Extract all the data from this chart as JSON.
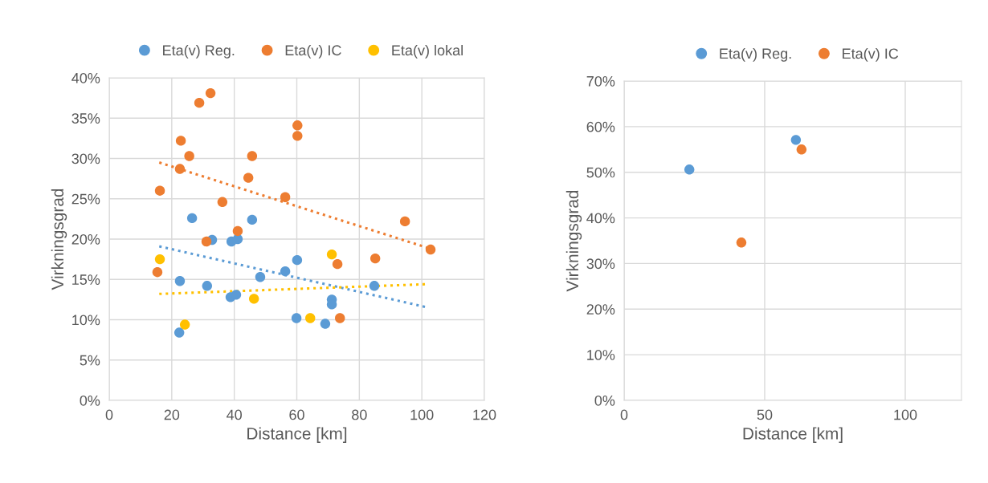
{
  "chart_data": [
    {
      "type": "scatter",
      "xlabel": "Distance [km]",
      "ylabel": "Virkningsgrad",
      "xlim": [
        0,
        120
      ],
      "xticks": [
        0,
        20,
        40,
        60,
        80,
        100,
        120
      ],
      "ylim": [
        0,
        40
      ],
      "yticks": [
        {
          "value": 0,
          "label": "0%"
        },
        {
          "value": 5,
          "label": "5%"
        },
        {
          "value": 10,
          "label": "10%"
        },
        {
          "value": 15,
          "label": "15%"
        },
        {
          "value": 20,
          "label": "20%"
        },
        {
          "value": 25,
          "label": "25%"
        },
        {
          "value": 30,
          "label": "30%"
        },
        {
          "value": 35,
          "label": "35%"
        },
        {
          "value": 40,
          "label": "40%"
        }
      ],
      "grid": true,
      "legend": "top",
      "marker": "circle",
      "series": [
        {
          "name": "Eta(v) Reg.",
          "color": "#5b9bd5",
          "x": [
            26.5,
            32.9,
            39.1,
            41.1,
            45.7,
            22.6,
            31.3,
            38.8,
            40.6,
            48.3,
            56.3,
            60.1,
            59.9,
            69.1,
            71.2,
            71.2,
            84.8,
            22.4
          ],
          "values": [
            22.6,
            19.9,
            19.7,
            20.0,
            22.4,
            14.8,
            14.2,
            12.8,
            13.1,
            15.3,
            16.0,
            17.4,
            10.2,
            9.5,
            12.5,
            11.9,
            14.2,
            8.4
          ]
        },
        {
          "name": "Eta(v) IC",
          "color": "#ed7d31",
          "x": [
            32.4,
            28.8,
            60.2,
            60.2,
            22.9,
            25.6,
            45.7,
            22.6,
            44.5,
            16.2,
            36.2,
            56.3,
            41.1,
            31.1,
            15.4,
            94.6,
            102.8,
            85.1,
            73.0,
            73.8
          ],
          "values": [
            38.1,
            36.9,
            34.1,
            32.8,
            32.2,
            30.3,
            30.3,
            28.7,
            27.6,
            26.0,
            24.6,
            25.2,
            21.0,
            19.7,
            15.9,
            22.2,
            18.7,
            17.6,
            16.9,
            10.2
          ]
        },
        {
          "name": "Eta(v) lokal",
          "color": "#ffc000",
          "x": [
            16.2,
            24.2,
            46.3,
            64.3,
            71.2
          ],
          "values": [
            17.5,
            9.4,
            12.6,
            10.2,
            18.1
          ]
        },
        {
          "type": "line",
          "color": "#ed7d31",
          "line_style": "dotted",
          "marker": "none",
          "x": [
            16,
            102
          ],
          "values": [
            29.5,
            18.9
          ]
        },
        {
          "type": "line",
          "color": "#5b9bd5",
          "line_style": "dotted",
          "marker": "none",
          "x": [
            16,
            101
          ],
          "values": [
            19.1,
            11.6
          ]
        },
        {
          "type": "line",
          "color": "#ffc000",
          "line_style": "dotted",
          "marker": "none",
          "x": [
            16,
            101
          ],
          "values": [
            13.2,
            14.4
          ]
        }
      ]
    },
    {
      "type": "scatter",
      "xlabel": "Distance [km]",
      "ylabel": "Virkningsgrad",
      "xlim": [
        0,
        120
      ],
      "xticks": [
        0,
        50,
        100
      ],
      "ylim": [
        0,
        70
      ],
      "yticks": [
        {
          "value": 0,
          "label": "0%"
        },
        {
          "value": 10,
          "label": "10%"
        },
        {
          "value": 20,
          "label": "20%"
        },
        {
          "value": 30,
          "label": "30%"
        },
        {
          "value": 40,
          "label": "40%"
        },
        {
          "value": 50,
          "label": "50%"
        },
        {
          "value": 60,
          "label": "60%"
        },
        {
          "value": 70,
          "label": "70%"
        }
      ],
      "grid": true,
      "legend": "top",
      "marker": "circle",
      "series": [
        {
          "name": "Eta(v) Reg.",
          "color": "#5b9bd5",
          "x": [
            23.2,
            61.1
          ],
          "values": [
            50.6,
            57.1
          ]
        },
        {
          "name": "Eta(v) IC",
          "color": "#ed7d31",
          "x": [
            41.7,
            63.1
          ],
          "values": [
            34.6,
            55.0
          ]
        }
      ]
    }
  ]
}
